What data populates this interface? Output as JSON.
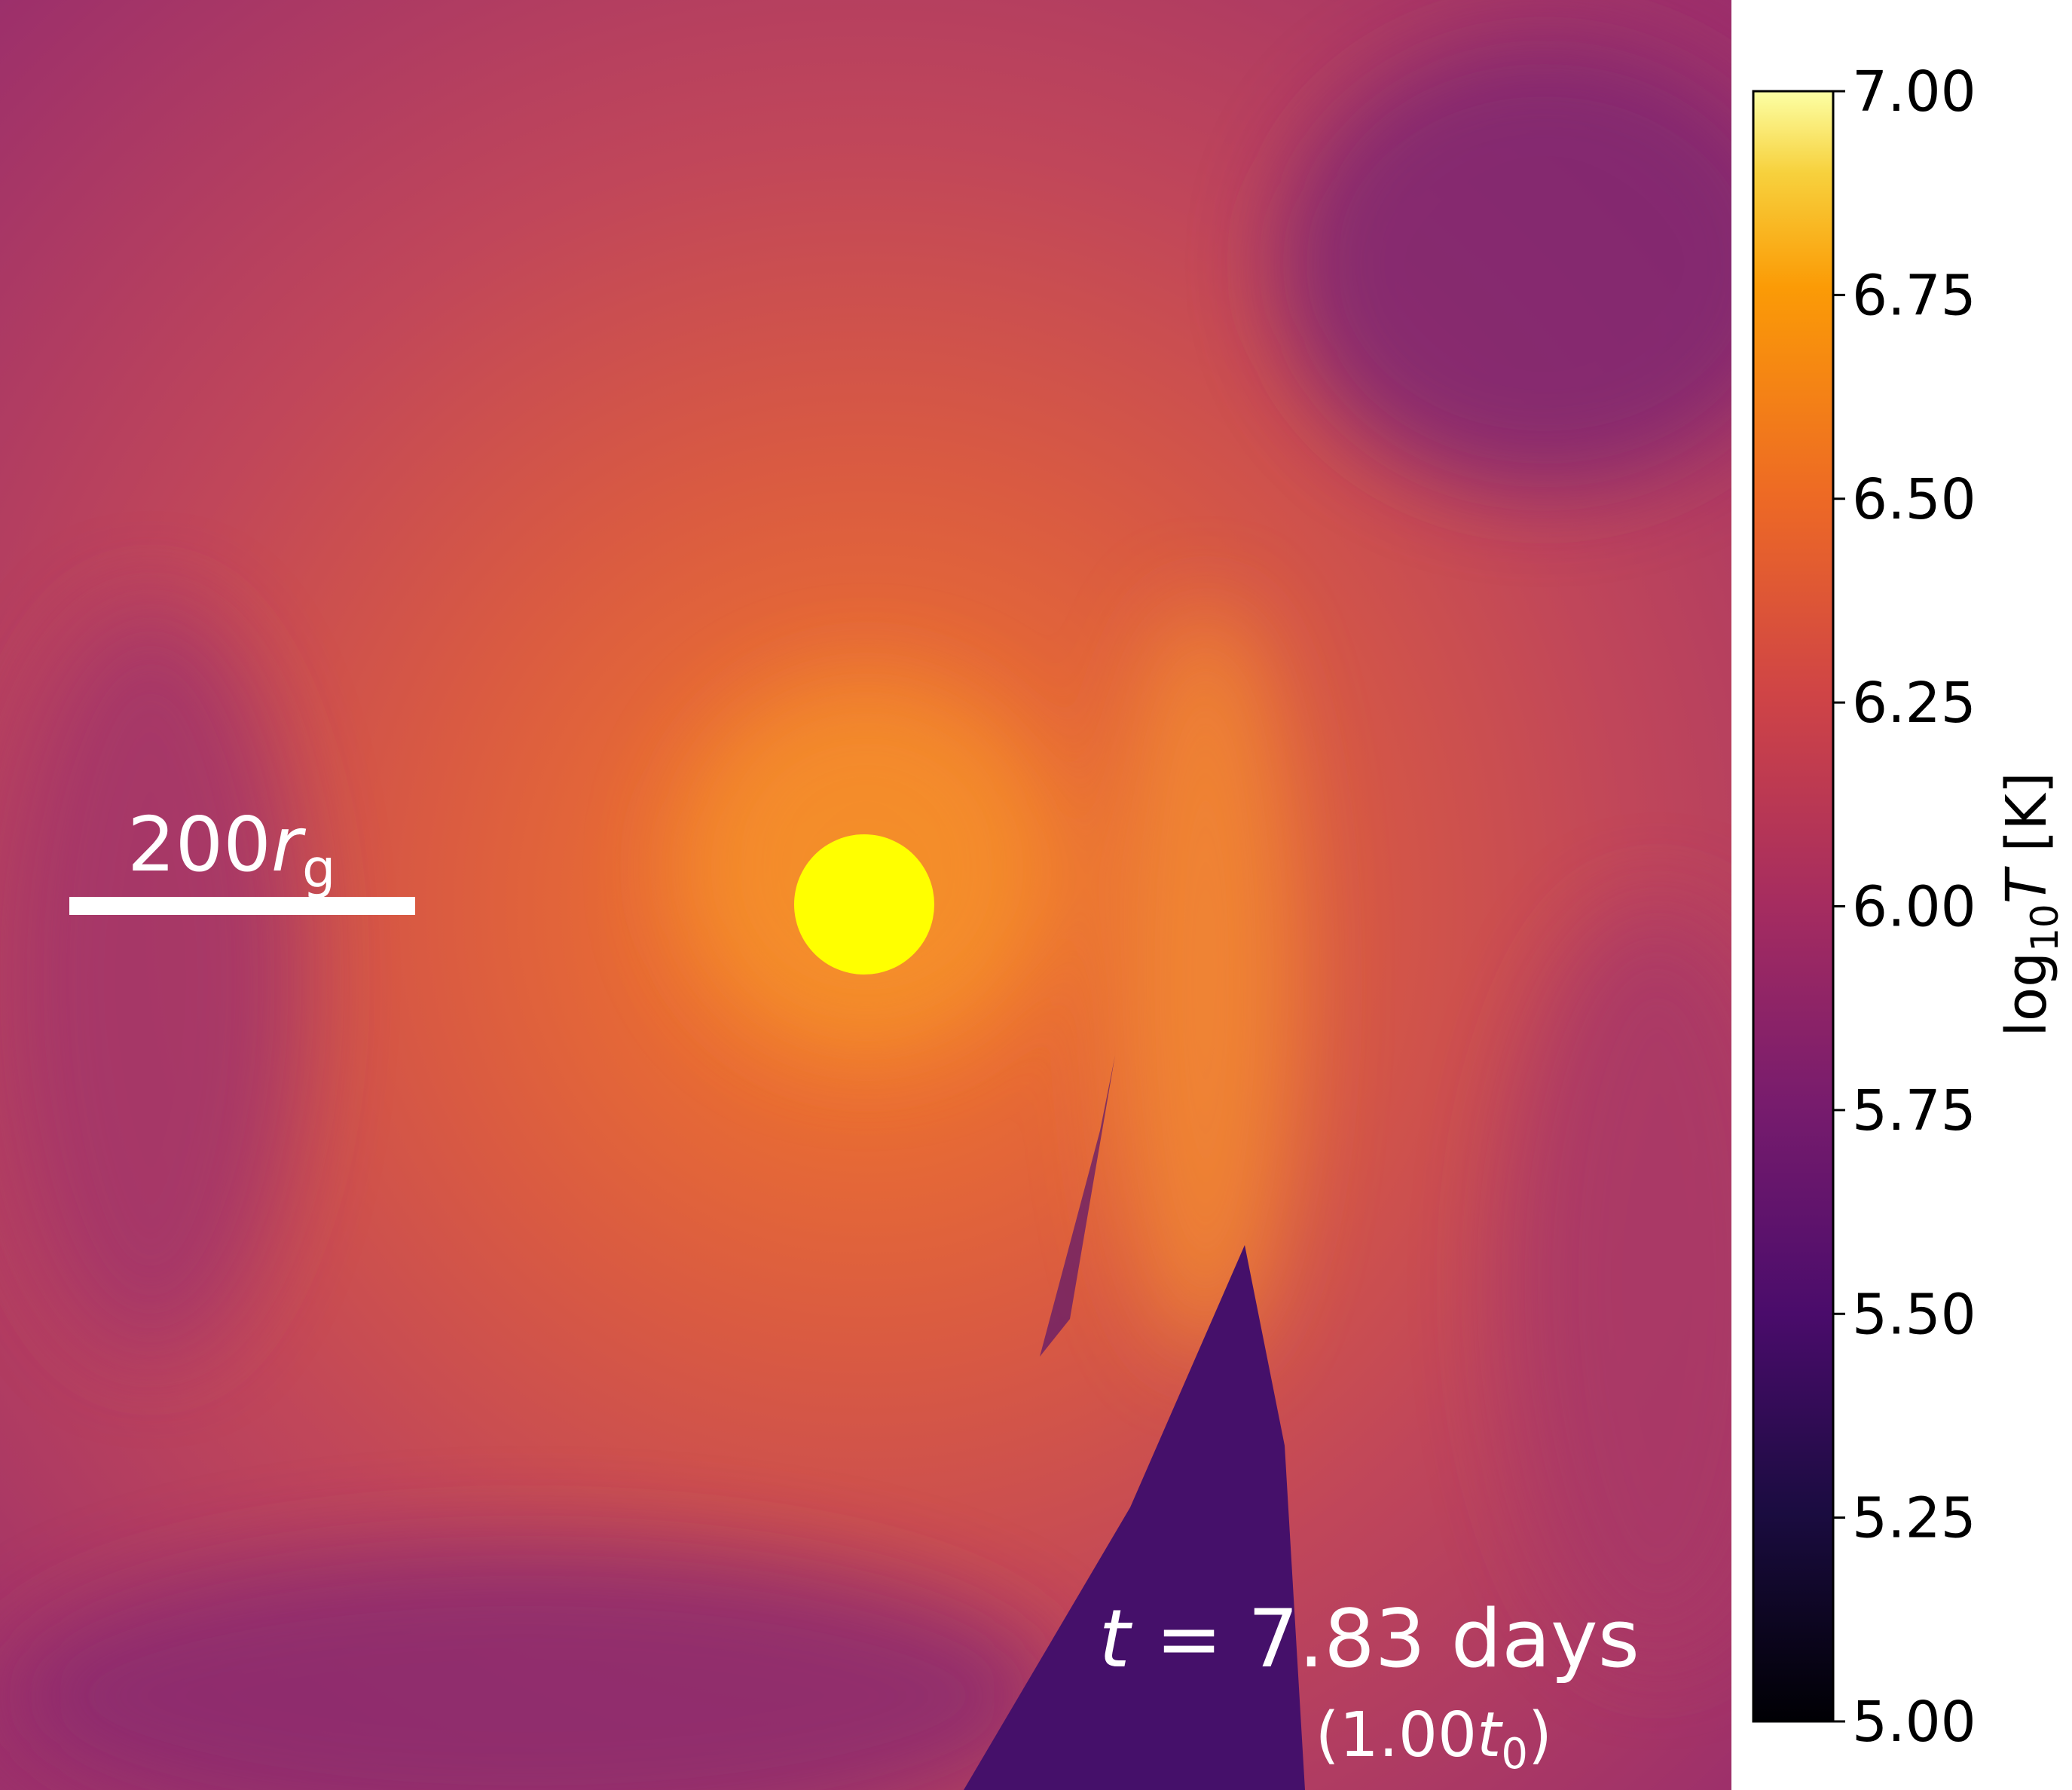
{
  "chart_data": {
    "type": "image",
    "scale_bar_label": [
      "200",
      "r",
      "g"
    ],
    "time_label": [
      "t",
      " = 7.83 days"
    ],
    "time_unit_label": [
      "(1.00",
      "t",
      "0",
      ")"
    ],
    "colorbar_label": [
      "log",
      "10",
      "T",
      " [K]"
    ],
    "clim": [
      5,
      7
    ],
    "cticks": [
      {
        "value": 5,
        "label": "5.00"
      },
      {
        "value": 5.25,
        "label": "5.25"
      },
      {
        "value": 5.5,
        "label": "5.50"
      },
      {
        "value": 5.75,
        "label": "5.75"
      },
      {
        "value": 6,
        "label": "6.00"
      },
      {
        "value": 6.25,
        "label": "6.25"
      },
      {
        "value": 6.5,
        "label": "6.50"
      },
      {
        "value": 6.75,
        "label": "6.75"
      },
      {
        "value": 7,
        "label": "7.00"
      }
    ]
  }
}
